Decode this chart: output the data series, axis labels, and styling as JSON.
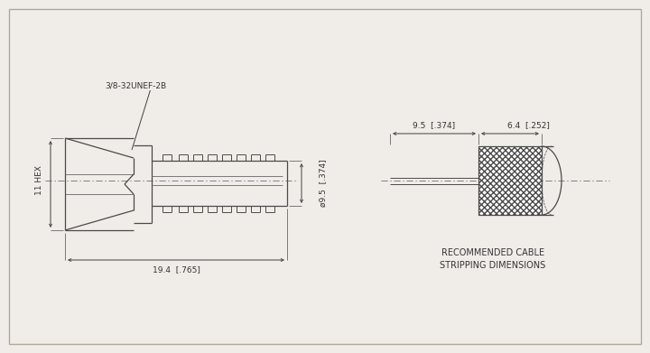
{
  "bg_color": "#f0ede8",
  "line_color": "#4a4a4a",
  "centerline_color": "#777777",
  "title_line1": "RECOMMENDED CABLE",
  "title_line2": "STRIPPING DIMENSIONS",
  "label_thread": "3/8-32UNEF-2B",
  "label_hex": "11 HEX",
  "label_dia": "ø9.5  [.374]",
  "label_length": "19.4  [.765]",
  "label_dim1": "9.5  [.374]",
  "label_dim2": "6.4  [.252]",
  "font_size": 6.5,
  "lw": 0.9
}
